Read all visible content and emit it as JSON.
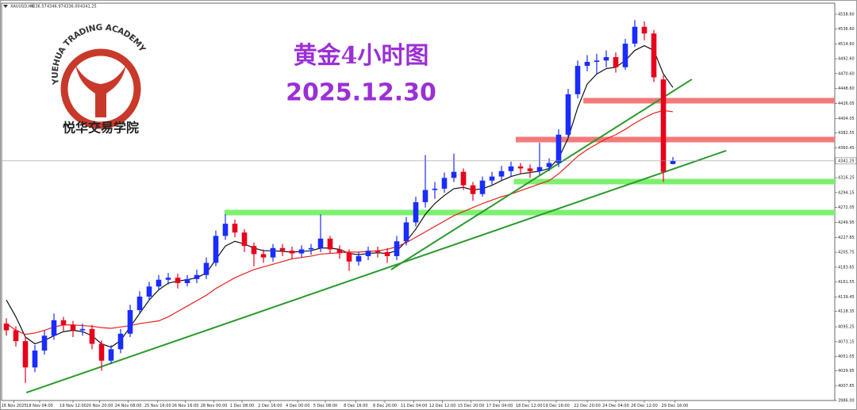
{
  "chart_data": {
    "type": "candlestick",
    "symbol": "XAUUSD,H4",
    "ohlc_labels": [
      "4336.57",
      "4346.97",
      "4336.00",
      "4341.25"
    ],
    "title": "黄金4小时图",
    "subtitle": "2025.12.30",
    "logo": {
      "name": "YUEHUA TRADING ACADEMY",
      "name_cn": "悦华交易学院"
    },
    "up_color": "#1a2cff",
    "down_color": "#e8001c",
    "xlim": [
      -0.5,
      87
    ],
    "ylim": [
      3986,
      4575
    ],
    "xticks": [
      {
        "value": 0.8,
        "label": "16 Nov 2025"
      },
      {
        "value": 3.5,
        "label": "18 Nov 04:00"
      },
      {
        "value": 7,
        "label": "19 Nov 12:00"
      },
      {
        "value": 9.8,
        "label": "20 Nov 20:00"
      },
      {
        "value": 12.8,
        "label": "24 Nov 08:00"
      },
      {
        "value": 15.9,
        "label": "25 Nov 16:00"
      },
      {
        "value": 18.8,
        "label": "26 Nov 16:00"
      },
      {
        "value": 21.8,
        "label": "28 Nov 00:00"
      },
      {
        "value": 24.75,
        "label": "1 Dec 08:00"
      },
      {
        "value": 27.7,
        "label": "2 Dec 16:00"
      },
      {
        "value": 30.6,
        "label": "4 Dec 00:00"
      },
      {
        "value": 33.5,
        "label": "5 Dec 08:00"
      },
      {
        "value": 36.7,
        "label": "8 Dec 16:00"
      },
      {
        "value": 39.75,
        "label": "9 Dec 20:00"
      },
      {
        "value": 42.8,
        "label": "11 Dec 04:00"
      },
      {
        "value": 45.8,
        "label": "12 Dec 12:00"
      },
      {
        "value": 48.8,
        "label": "15 Dec 20:00"
      },
      {
        "value": 51.8,
        "label": "17 Dec 04:00"
      },
      {
        "value": 54.9,
        "label": "18 Dec 12:00"
      },
      {
        "value": 57.75,
        "label": "19 Dec 16:00"
      },
      {
        "value": 61,
        "label": "22 Dec 20:00"
      },
      {
        "value": 64,
        "label": "24 Dec 04:00"
      },
      {
        "value": 67,
        "label": "26 Dec 12:00"
      },
      {
        "value": 70.2,
        "label": "29 Dec 16:00"
      }
    ],
    "yticks": [
      {
        "value": 4558.6,
        "label": "4558.60"
      },
      {
        "value": 4536.6,
        "label": "4536.60"
      },
      {
        "value": 4514.6,
        "label": "4514.60"
      },
      {
        "value": 4492.6,
        "label": "4492.60"
      },
      {
        "value": 4470.6,
        "label": "4470.60"
      },
      {
        "value": 4448.6,
        "label": "4448.60"
      },
      {
        "value": 4426.05,
        "label": "4426.05"
      },
      {
        "value": 4404.05,
        "label": "4404.05"
      },
      {
        "value": 4382.55,
        "label": "4382.55"
      },
      {
        "value": 4360.45,
        "label": "4360.45"
      },
      {
        "value": 4316.25,
        "label": "4316.25"
      },
      {
        "value": 4294.15,
        "label": "4294.15"
      },
      {
        "value": 4272.05,
        "label": "4272.05"
      },
      {
        "value": 4249.95,
        "label": "4249.95"
      },
      {
        "value": 4227.85,
        "label": "4227.85"
      },
      {
        "value": 4205.75,
        "label": "4205.75"
      },
      {
        "value": 4183.65,
        "label": "4183.65"
      },
      {
        "value": 4161.55,
        "label": "4161.55"
      },
      {
        "value": 4139.45,
        "label": "4139.45"
      },
      {
        "value": 4118.35,
        "label": "4118.35"
      },
      {
        "value": 4095.25,
        "label": "4095.25"
      },
      {
        "value": 4073.15,
        "label": "4073.15"
      },
      {
        "value": 4051.05,
        "label": "4051.05"
      },
      {
        "value": 4029.95,
        "label": "4029.95"
      },
      {
        "value": 4007.85,
        "label": "4007.85"
      },
      {
        "value": 3986,
        "label": "3986.00"
      }
    ],
    "open": [
      4100,
      4090,
      4074,
      4035,
      4060,
      4082,
      4105,
      4098,
      4090,
      4092,
      4070,
      4045,
      4062,
      4085,
      4120,
      4140,
      4155,
      4165,
      4168,
      4160,
      4166,
      4172,
      4190,
      4230,
      4248,
      4235,
      4215,
      4203,
      4198,
      4212,
      4208,
      4204,
      4210,
      4212,
      4226,
      4210,
      4205,
      4192,
      4200,
      4208,
      4206,
      4200,
      4222,
      4250,
      4280,
      4298,
      4300,
      4316,
      4325,
      4305,
      4292,
      4312,
      4318,
      4326,
      4333,
      4330,
      4326,
      4332,
      4338,
      4380,
      4440,
      4482,
      4488,
      4490,
      4495,
      4480,
      4515,
      4540,
      4530,
      4462,
      4336.57
    ],
    "high": [
      4108,
      4096,
      4080,
      4068,
      4090,
      4115,
      4110,
      4104,
      4100,
      4098,
      4075,
      4068,
      4092,
      4128,
      4148,
      4162,
      4172,
      4175,
      4174,
      4172,
      4180,
      4198,
      4238,
      4262,
      4254,
      4240,
      4220,
      4210,
      4218,
      4218,
      4214,
      4216,
      4218,
      4262,
      4230,
      4216,
      4210,
      4206,
      4214,
      4214,
      4212,
      4230,
      4258,
      4288,
      4350,
      4310,
      4324,
      4352,
      4330,
      4310,
      4318,
      4325,
      4334,
      4340,
      4338,
      4336,
      4368,
      4345,
      4388,
      4448,
      4490,
      4498,
      4500,
      4505,
      4502,
      4522,
      4550,
      4548,
      4535,
      4468,
      4346.97
    ],
    "low": [
      4082,
      4066,
      4012,
      4028,
      4054,
      4076,
      4088,
      4080,
      4082,
      4062,
      4030,
      4040,
      4056,
      4080,
      4114,
      4134,
      4150,
      4158,
      4152,
      4155,
      4160,
      4166,
      4185,
      4224,
      4228,
      4206,
      4185,
      4190,
      4192,
      4200,
      4196,
      4198,
      4202,
      4206,
      4204,
      4196,
      4178,
      4186,
      4194,
      4198,
      4190,
      4194,
      4216,
      4244,
      4272,
      4285,
      4294,
      4310,
      4298,
      4282,
      4288,
      4306,
      4312,
      4318,
      4322,
      4316,
      4320,
      4326,
      4332,
      4374,
      4434,
      4474,
      4470,
      4480,
      4472,
      4476,
      4510,
      4520,
      4458,
      4310,
      4336
    ],
    "close": [
      4090,
      4074,
      4035,
      4060,
      4082,
      4105,
      4098,
      4090,
      4092,
      4070,
      4045,
      4062,
      4085,
      4120,
      4140,
      4155,
      4165,
      4168,
      4160,
      4166,
      4172,
      4190,
      4230,
      4248,
      4235,
      4215,
      4203,
      4198,
      4212,
      4208,
      4204,
      4210,
      4212,
      4226,
      4210,
      4205,
      4192,
      4200,
      4208,
      4206,
      4200,
      4222,
      4250,
      4280,
      4298,
      4300,
      4316,
      4325,
      4305,
      4292,
      4312,
      4318,
      4326,
      4333,
      4330,
      4326,
      4332,
      4338,
      4380,
      4440,
      4482,
      4488,
      4490,
      4495,
      4480,
      4515,
      4540,
      4530,
      4465,
      4325,
      4341.25
    ],
    "moving_averages": [
      {
        "color": "#111111",
        "values": [
          4135,
          4110,
          4080,
          4070,
          4075,
          4082,
          4088,
          4090,
          4088,
          4082,
          4070,
          4065,
          4075,
          4095,
          4115,
          4135,
          4150,
          4160,
          4163,
          4165,
          4168,
          4175,
          4195,
          4215,
          4222,
          4218,
          4212,
          4208,
          4208,
          4207,
          4206,
          4207,
          4208,
          4212,
          4212,
          4210,
          4204,
          4202,
          4204,
          4205,
          4204,
          4208,
          4222,
          4240,
          4262,
          4278,
          4290,
          4300,
          4302,
          4298,
          4300,
          4305,
          4312,
          4318,
          4322,
          4324,
          4326,
          4330,
          4345,
          4375,
          4420,
          4455,
          4470,
          4478,
          4480,
          4490,
          4505,
          4512,
          4505,
          4470,
          4450
        ]
      },
      {
        "color": "#e8201c",
        "values": [
          4100,
          4090,
          4084,
          4086,
          4090,
          4095,
          4098,
          4098,
          4097,
          4096,
          4094,
          4093,
          4095,
          4097,
          4100,
          4102,
          4104,
          4110,
          4118,
          4126,
          4134,
          4142,
          4152,
          4160,
          4168,
          4174,
          4180,
          4184,
          4188,
          4192,
          4196,
          4198,
          4200,
          4203,
          4204,
          4205,
          4206,
          4206,
          4207,
          4208,
          4210,
          4214,
          4220,
          4228,
          4236,
          4244,
          4252,
          4260,
          4266,
          4272,
          4278,
          4283,
          4288,
          4292,
          4297,
          4302,
          4307,
          4312,
          4322,
          4335,
          4348,
          4358,
          4366,
          4374,
          4380,
          4388,
          4397,
          4405,
          4412,
          4416,
          4414
        ]
      }
    ],
    "levels": [
      {
        "value": 4430.4,
        "from": 60.6,
        "color": "#f47a7a"
      },
      {
        "value": 4372.8,
        "from": 53.5,
        "color": "#f47a7a"
      },
      {
        "value": 4310.5,
        "from": 53.3,
        "color": "#7df070"
      },
      {
        "value": 4264.6,
        "from": 22.9,
        "color": "#7df070"
      }
    ],
    "trendlines": [
      {
        "x": [
          2.1,
          75.6
        ],
        "y": [
          3997.7,
          4356.4
        ],
        "color": "#2b9a2b"
      },
      {
        "x": [
          40.4,
          72
        ],
        "y": [
          4180,
          4462.2
        ],
        "color": "#2b9a2b"
      }
    ]
  }
}
